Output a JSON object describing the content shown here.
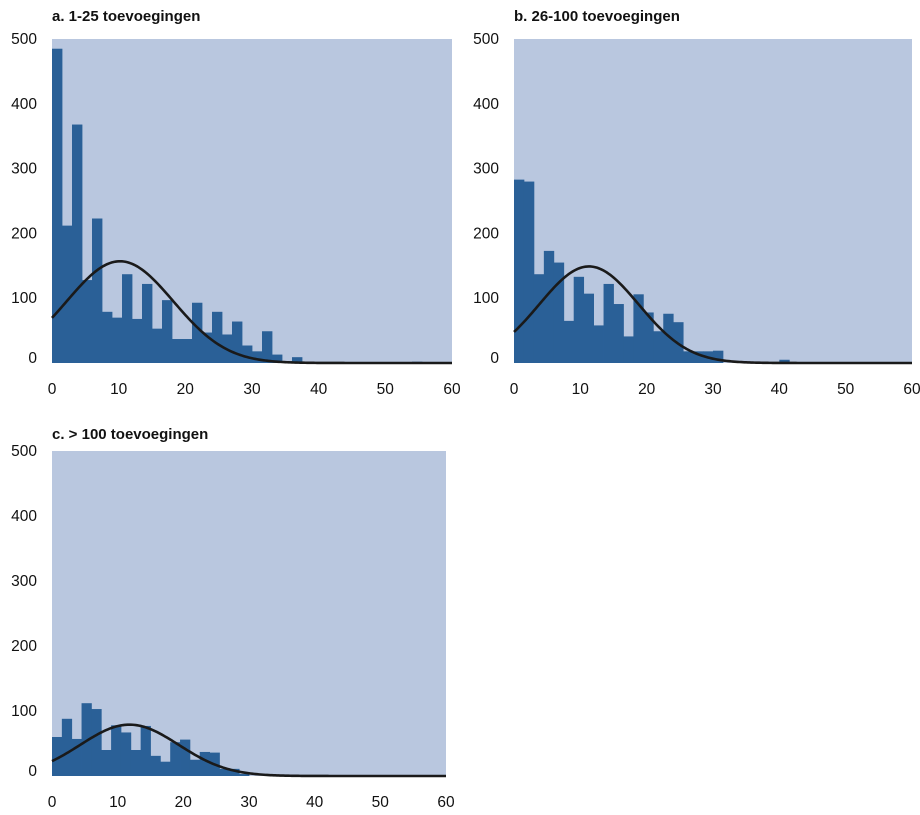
{
  "colors": {
    "plot_background": "#b9c7df",
    "bar": "#2a6097",
    "curve": "#1a1a1a"
  },
  "chart_data": [
    {
      "type": "bar",
      "overlay": "normal-curve",
      "title": "a. 1-25 toevoegingen",
      "xlabel": "",
      "ylabel": "",
      "xlim": [
        0,
        60
      ],
      "ylim": [
        0,
        500
      ],
      "xticks": [
        "0",
        "10",
        "20",
        "30",
        "40",
        "50",
        "60"
      ],
      "yticks": [
        "0",
        "100",
        "200",
        "300",
        "400",
        "500"
      ],
      "bin_width": 1.5,
      "bins": [
        {
          "x": 0,
          "y": 485
        },
        {
          "x": 1.5,
          "y": 212
        },
        {
          "x": 3,
          "y": 368
        },
        {
          "x": 4.5,
          "y": 128
        },
        {
          "x": 6,
          "y": 223
        },
        {
          "x": 7.5,
          "y": 79
        },
        {
          "x": 9,
          "y": 70
        },
        {
          "x": 10.5,
          "y": 137
        },
        {
          "x": 12,
          "y": 68
        },
        {
          "x": 13.5,
          "y": 122
        },
        {
          "x": 15,
          "y": 53
        },
        {
          "x": 16.5,
          "y": 97
        },
        {
          "x": 18,
          "y": 37
        },
        {
          "x": 19.5,
          "y": 37
        },
        {
          "x": 21,
          "y": 93
        },
        {
          "x": 22.5,
          "y": 47
        },
        {
          "x": 24,
          "y": 79
        },
        {
          "x": 25.5,
          "y": 44
        },
        {
          "x": 27,
          "y": 64
        },
        {
          "x": 28.5,
          "y": 27
        },
        {
          "x": 30,
          "y": 18
        },
        {
          "x": 31.5,
          "y": 49
        },
        {
          "x": 33,
          "y": 13
        },
        {
          "x": 34.5,
          "y": 3
        },
        {
          "x": 36,
          "y": 9
        },
        {
          "x": 37.5,
          "y": 2
        },
        {
          "x": 54,
          "y": 2
        }
      ],
      "curve": {
        "mean": 10.2,
        "sd": 8.0,
        "peak": 157
      }
    },
    {
      "type": "bar",
      "overlay": "normal-curve",
      "title": "b. 26-100 toevoegingen",
      "xlabel": "",
      "ylabel": "",
      "xlim": [
        0,
        60
      ],
      "ylim": [
        0,
        500
      ],
      "xticks": [
        "0",
        "10",
        "20",
        "30",
        "40",
        "50",
        "60"
      ],
      "yticks": [
        "0",
        "100",
        "200",
        "300",
        "400",
        "500"
      ],
      "bin_width": 1.5,
      "bins": [
        {
          "x": 0,
          "y": 283
        },
        {
          "x": 1.5,
          "y": 280
        },
        {
          "x": 3,
          "y": 137
        },
        {
          "x": 4.5,
          "y": 173
        },
        {
          "x": 6,
          "y": 155
        },
        {
          "x": 7.5,
          "y": 65
        },
        {
          "x": 9,
          "y": 133
        },
        {
          "x": 10.5,
          "y": 107
        },
        {
          "x": 12,
          "y": 58
        },
        {
          "x": 13.5,
          "y": 122
        },
        {
          "x": 15,
          "y": 91
        },
        {
          "x": 16.5,
          "y": 41
        },
        {
          "x": 18,
          "y": 106
        },
        {
          "x": 19.5,
          "y": 78
        },
        {
          "x": 21,
          "y": 49
        },
        {
          "x": 22.5,
          "y": 76
        },
        {
          "x": 24,
          "y": 63
        },
        {
          "x": 25.5,
          "y": 18
        },
        {
          "x": 27,
          "y": 18
        },
        {
          "x": 28.5,
          "y": 18
        },
        {
          "x": 30,
          "y": 19
        },
        {
          "x": 40,
          "y": 5
        }
      ],
      "curve": {
        "mean": 11.3,
        "sd": 7.5,
        "peak": 149
      }
    },
    {
      "type": "bar",
      "overlay": "normal-curve",
      "title": "c. > 100 toevoegingen",
      "xlabel": "",
      "ylabel": "",
      "xlim": [
        0,
        60
      ],
      "ylim": [
        0,
        500
      ],
      "xticks": [
        "0",
        "10",
        "20",
        "30",
        "40",
        "50",
        "60"
      ],
      "yticks": [
        "0",
        "100",
        "200",
        "300",
        "400",
        "500"
      ],
      "bin_width": 1.5,
      "bins": [
        {
          "x": 0,
          "y": 60
        },
        {
          "x": 1.5,
          "y": 88
        },
        {
          "x": 3,
          "y": 57
        },
        {
          "x": 4.5,
          "y": 112
        },
        {
          "x": 6,
          "y": 103
        },
        {
          "x": 7.5,
          "y": 40
        },
        {
          "x": 9,
          "y": 78
        },
        {
          "x": 10.5,
          "y": 67
        },
        {
          "x": 12,
          "y": 40
        },
        {
          "x": 13.5,
          "y": 77
        },
        {
          "x": 15,
          "y": 31
        },
        {
          "x": 16.5,
          "y": 22
        },
        {
          "x": 18,
          "y": 52
        },
        {
          "x": 19.5,
          "y": 56
        },
        {
          "x": 21,
          "y": 25
        },
        {
          "x": 22.5,
          "y": 37
        },
        {
          "x": 24,
          "y": 36
        },
        {
          "x": 25.5,
          "y": 11
        },
        {
          "x": 27,
          "y": 11
        },
        {
          "x": 28.5,
          "y": 3
        }
      ],
      "curve": {
        "mean": 11.8,
        "sd": 7.5,
        "peak": 79
      }
    }
  ]
}
